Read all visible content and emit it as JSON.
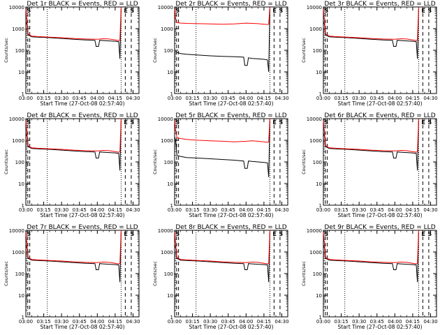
{
  "chart_data": [
    {
      "type": "line",
      "title": "Det 1r BLACK = Events, RED = LLD",
      "xlabel": "Start Time (27-Oct-08 02:57:40)",
      "ylabel": "Counts/sec",
      "yscale": "log",
      "ylim": [
        1,
        10000
      ],
      "x_tick_labels": [
        "03:00",
        "03:15",
        "03:30",
        "03:45",
        "04:00",
        "04:15",
        "04:30"
      ],
      "y_tick_labels": [
        "1",
        "10",
        "100",
        "1000",
        "10000"
      ],
      "markers": {
        "start_label": "S",
        "end_labels": [
          "E",
          "S"
        ]
      },
      "series": [
        {
          "color": "#000000",
          "x": [
            "03:00",
            "03:01",
            "03:02",
            "03:05",
            "03:10",
            "03:20",
            "03:30",
            "03:40",
            "03:50",
            "03:58",
            "03:59",
            "04:01",
            "04:02",
            "04:05",
            "04:10",
            "04:15",
            "04:18",
            "04:19",
            "04:20"
          ],
          "y": [
            2000,
            1500,
            500,
            420,
            400,
            380,
            350,
            320,
            300,
            290,
            150,
            150,
            290,
            280,
            270,
            260,
            250,
            40,
            8000
          ]
        },
        {
          "color": "#ff0000",
          "x": [
            "03:00",
            "03:01",
            "03:02",
            "03:05",
            "03:10",
            "03:20",
            "03:30",
            "03:40",
            "03:50",
            "04:00",
            "04:05",
            "04:10",
            "04:15",
            "04:18",
            "04:19",
            "04:20"
          ],
          "y": [
            8000,
            2000,
            550,
            450,
            430,
            400,
            380,
            350,
            330,
            320,
            340,
            330,
            300,
            280,
            300,
            10000
          ]
        }
      ]
    },
    {
      "type": "line",
      "title": "Det 2r BLACK = Events, RED = LLD",
      "xlabel": "Start Time (27-Oct-08 02:57:40)",
      "ylabel": "Counts/sec",
      "yscale": "log",
      "ylim": [
        1,
        10000
      ],
      "x_tick_labels": [
        "03:00",
        "03:15",
        "03:30",
        "03:45",
        "04:00",
        "04:15",
        "04:30"
      ],
      "y_tick_labels": [
        "1",
        "10",
        "100",
        "1000",
        "10000"
      ],
      "markers": {
        "start_label": "S",
        "end_labels": [
          "E",
          "S"
        ]
      },
      "series": [
        {
          "color": "#000000",
          "x": [
            "03:02",
            "03:05",
            "03:10",
            "03:20",
            "03:30",
            "03:40",
            "03:50",
            "03:58",
            "03:59",
            "04:01",
            "04:02",
            "04:05",
            "04:10",
            "04:15",
            "04:18",
            "04:19",
            "04:20"
          ],
          "y": [
            80,
            70,
            65,
            60,
            55,
            52,
            50,
            48,
            20,
            20,
            45,
            42,
            40,
            38,
            36,
            10,
            8000
          ]
        },
        {
          "color": "#ff0000",
          "x": [
            "03:00",
            "03:01",
            "03:02",
            "03:05",
            "03:10",
            "03:20",
            "03:30",
            "03:40",
            "03:50",
            "04:00",
            "04:10",
            "04:15",
            "04:18",
            "04:19",
            "04:20"
          ],
          "y": [
            8000,
            2500,
            1900,
            1800,
            1750,
            1700,
            1650,
            1600,
            1650,
            1800,
            1700,
            1600,
            1550,
            1600,
            10000
          ]
        }
      ]
    },
    {
      "type": "line",
      "title": "Det 3r BLACK = Events, RED = LLD",
      "xlabel": "Start Time (27-Oct-08 02:57:40)",
      "ylabel": "Counts/sec",
      "yscale": "log",
      "ylim": [
        1,
        10000
      ],
      "x_tick_labels": [
        "03:00",
        "03:15",
        "03:30",
        "03:45",
        "04:00",
        "04:15",
        "04:30"
      ],
      "y_tick_labels": [
        "1",
        "10",
        "100",
        "1000",
        "10000"
      ],
      "markers": {
        "start_label": "S",
        "end_labels": [
          "E",
          "S"
        ]
      },
      "series": [
        {
          "color": "#000000",
          "x": [
            "03:00",
            "03:01",
            "03:02",
            "03:05",
            "03:10",
            "03:20",
            "03:30",
            "03:40",
            "03:50",
            "03:58",
            "03:59",
            "04:01",
            "04:02",
            "04:05",
            "04:10",
            "04:15",
            "04:18",
            "04:19",
            "04:20"
          ],
          "y": [
            2000,
            1500,
            500,
            420,
            400,
            380,
            350,
            320,
            300,
            290,
            150,
            150,
            290,
            280,
            270,
            260,
            250,
            40,
            8000
          ]
        },
        {
          "color": "#ff0000",
          "x": [
            "03:00",
            "03:01",
            "03:02",
            "03:05",
            "03:10",
            "03:20",
            "03:30",
            "03:40",
            "03:50",
            "04:00",
            "04:05",
            "04:10",
            "04:15",
            "04:18",
            "04:19",
            "04:20"
          ],
          "y": [
            8000,
            2000,
            550,
            450,
            430,
            400,
            380,
            350,
            330,
            320,
            340,
            330,
            300,
            280,
            300,
            10000
          ]
        }
      ]
    },
    {
      "type": "line",
      "title": "Det 4r BLACK = Events, RED = LLD",
      "xlabel": "Start Time (27-Oct-08 02:57:40)",
      "ylabel": "Counts/sec",
      "yscale": "log",
      "ylim": [
        1,
        10000
      ],
      "x_tick_labels": [
        "03:00",
        "03:15",
        "03:30",
        "03:45",
        "04:00",
        "04:15",
        "04:30"
      ],
      "y_tick_labels": [
        "1",
        "10",
        "100",
        "1000",
        "10000"
      ],
      "markers": {
        "start_label": "S",
        "end_labels": [
          "E",
          "S"
        ]
      },
      "series": [
        {
          "color": "#000000",
          "x": [
            "03:00",
            "03:01",
            "03:02",
            "03:05",
            "03:10",
            "03:20",
            "03:30",
            "03:40",
            "03:50",
            "03:58",
            "03:59",
            "04:01",
            "04:02",
            "04:05",
            "04:10",
            "04:15",
            "04:18",
            "04:19",
            "04:20"
          ],
          "y": [
            2000,
            1500,
            500,
            420,
            400,
            380,
            350,
            320,
            300,
            290,
            150,
            150,
            290,
            280,
            270,
            260,
            250,
            40,
            8000
          ]
        },
        {
          "color": "#ff0000",
          "x": [
            "03:00",
            "03:01",
            "03:02",
            "03:05",
            "03:10",
            "03:20",
            "03:30",
            "03:40",
            "03:50",
            "04:00",
            "04:05",
            "04:10",
            "04:15",
            "04:18",
            "04:19",
            "04:20"
          ],
          "y": [
            8000,
            2000,
            550,
            450,
            430,
            400,
            380,
            350,
            330,
            320,
            340,
            330,
            300,
            280,
            300,
            10000
          ]
        }
      ]
    },
    {
      "type": "line",
      "title": "Det 5r BLACK = Events, RED = LLD",
      "xlabel": "Start Time (27-Oct-08 02:57:40)",
      "ylabel": "Counts/sec",
      "yscale": "log",
      "ylim": [
        1,
        10000
      ],
      "x_tick_labels": [
        "03:00",
        "03:15",
        "03:30",
        "03:45",
        "04:00",
        "04:15",
        "04:30"
      ],
      "y_tick_labels": [
        "1",
        "10",
        "100",
        "1000",
        "10000"
      ],
      "markers": {
        "start_label": "S",
        "end_labels": [
          "E",
          "S"
        ]
      },
      "series": [
        {
          "color": "#000000",
          "x": [
            "03:00",
            "03:01",
            "03:02",
            "03:05",
            "03:10",
            "03:20",
            "03:30",
            "03:40",
            "03:50",
            "03:58",
            "03:59",
            "04:01",
            "04:02",
            "04:05",
            "04:10",
            "04:15",
            "04:18",
            "04:19",
            "04:20"
          ],
          "y": [
            1500,
            900,
            200,
            180,
            160,
            150,
            140,
            130,
            120,
            110,
            50,
            50,
            110,
            105,
            100,
            95,
            90,
            20,
            8000
          ]
        },
        {
          "color": "#ff0000",
          "x": [
            "03:00",
            "03:01",
            "03:02",
            "03:05",
            "03:10",
            "03:20",
            "03:30",
            "03:40",
            "03:50",
            "04:00",
            "04:05",
            "04:10",
            "04:15",
            "04:18",
            "04:19",
            "04:20"
          ],
          "y": [
            8000,
            2500,
            1300,
            1200,
            1100,
            1000,
            950,
            900,
            850,
            900,
            950,
            900,
            850,
            800,
            850,
            10000
          ]
        }
      ]
    },
    {
      "type": "line",
      "title": "Det 6r BLACK = Events, RED = LLD",
      "xlabel": "Start Time (27-Oct-08 02:57:40)",
      "ylabel": "Counts/sec",
      "yscale": "log",
      "ylim": [
        1,
        10000
      ],
      "x_tick_labels": [
        "03:00",
        "03:15",
        "03:30",
        "03:45",
        "04:00",
        "04:15",
        "04:30"
      ],
      "y_tick_labels": [
        "1",
        "10",
        "100",
        "1000",
        "10000"
      ],
      "markers": {
        "start_label": "S",
        "end_labels": [
          "E",
          "S"
        ]
      },
      "series": [
        {
          "color": "#000000",
          "x": [
            "03:00",
            "03:01",
            "03:02",
            "03:05",
            "03:10",
            "03:20",
            "03:30",
            "03:40",
            "03:50",
            "03:58",
            "03:59",
            "04:01",
            "04:02",
            "04:05",
            "04:10",
            "04:15",
            "04:18",
            "04:19",
            "04:20"
          ],
          "y": [
            2000,
            1500,
            500,
            420,
            400,
            380,
            350,
            320,
            300,
            290,
            150,
            150,
            290,
            280,
            270,
            260,
            250,
            40,
            8000
          ]
        },
        {
          "color": "#ff0000",
          "x": [
            "03:00",
            "03:01",
            "03:02",
            "03:05",
            "03:10",
            "03:20",
            "03:30",
            "03:40",
            "03:50",
            "04:00",
            "04:05",
            "04:10",
            "04:15",
            "04:18",
            "04:19",
            "04:20"
          ],
          "y": [
            8000,
            2000,
            550,
            450,
            430,
            400,
            380,
            350,
            330,
            320,
            340,
            330,
            300,
            280,
            300,
            10000
          ]
        }
      ]
    },
    {
      "type": "line",
      "title": "Det 7r BLACK = Events, RED = LLD",
      "xlabel": "Start Time (27-Oct-08 02:57:40)",
      "ylabel": "Counts/sec",
      "yscale": "log",
      "ylim": [
        1,
        10000
      ],
      "x_tick_labels": [
        "03:00",
        "03:15",
        "03:30",
        "03:45",
        "04:00",
        "04:15",
        "04:30"
      ],
      "y_tick_labels": [
        "1",
        "10",
        "100",
        "1000",
        "10000"
      ],
      "markers": {
        "start_label": "S",
        "end_labels": [
          "E",
          "S"
        ]
      },
      "series": [
        {
          "color": "#000000",
          "x": [
            "03:00",
            "03:01",
            "03:02",
            "03:05",
            "03:10",
            "03:20",
            "03:30",
            "03:40",
            "03:50",
            "03:58",
            "03:59",
            "04:01",
            "04:02",
            "04:05",
            "04:10",
            "04:15",
            "04:18",
            "04:19",
            "04:20"
          ],
          "y": [
            2000,
            1500,
            500,
            420,
            400,
            380,
            350,
            320,
            300,
            290,
            150,
            150,
            290,
            280,
            270,
            260,
            250,
            40,
            8000
          ]
        },
        {
          "color": "#ff0000",
          "x": [
            "03:00",
            "03:01",
            "03:02",
            "03:05",
            "03:10",
            "03:20",
            "03:30",
            "03:40",
            "03:50",
            "04:00",
            "04:05",
            "04:10",
            "04:15",
            "04:18",
            "04:19",
            "04:20"
          ],
          "y": [
            8000,
            2000,
            550,
            450,
            430,
            400,
            380,
            350,
            330,
            320,
            340,
            330,
            300,
            280,
            300,
            10000
          ]
        }
      ]
    },
    {
      "type": "line",
      "title": "Det 8r BLACK = Events, RED = LLD",
      "xlabel": "Start Time (27-Oct-08 02:57:40)",
      "ylabel": "Counts/sec",
      "yscale": "log",
      "ylim": [
        1,
        10000
      ],
      "x_tick_labels": [
        "03:00",
        "03:15",
        "03:30",
        "03:45",
        "04:00",
        "04:15",
        "04:30"
      ],
      "y_tick_labels": [
        "1",
        "10",
        "100",
        "1000",
        "10000"
      ],
      "markers": {
        "start_label": "S",
        "end_labels": [
          "E",
          "S"
        ]
      },
      "series": [
        {
          "color": "#000000",
          "x": [
            "03:00",
            "03:01",
            "03:02",
            "03:05",
            "03:10",
            "03:20",
            "03:30",
            "03:40",
            "03:50",
            "03:58",
            "03:59",
            "04:01",
            "04:02",
            "04:05",
            "04:10",
            "04:15",
            "04:18",
            "04:19",
            "04:20"
          ],
          "y": [
            2000,
            1500,
            500,
            420,
            400,
            380,
            350,
            320,
            300,
            290,
            150,
            150,
            290,
            280,
            270,
            260,
            250,
            40,
            8000
          ]
        },
        {
          "color": "#ff0000",
          "x": [
            "03:00",
            "03:01",
            "03:02",
            "03:05",
            "03:10",
            "03:20",
            "03:30",
            "03:40",
            "03:50",
            "04:00",
            "04:05",
            "04:10",
            "04:15",
            "04:18",
            "04:19",
            "04:20"
          ],
          "y": [
            8000,
            2000,
            550,
            450,
            430,
            400,
            380,
            350,
            330,
            320,
            340,
            330,
            300,
            280,
            300,
            10000
          ]
        }
      ]
    },
    {
      "type": "line",
      "title": "Det 9r BLACK = Events, RED = LLD",
      "xlabel": "Start Time (27-Oct-08 02:57:40)",
      "ylabel": "Counts/sec",
      "yscale": "log",
      "ylim": [
        1,
        10000
      ],
      "x_tick_labels": [
        "03:00",
        "03:15",
        "03:30",
        "03:45",
        "04:00",
        "04:15",
        "04:30"
      ],
      "y_tick_labels": [
        "1",
        "10",
        "100",
        "1000",
        "10000"
      ],
      "markers": {
        "start_label": "S",
        "end_labels": [
          "E",
          "S"
        ]
      },
      "series": [
        {
          "color": "#000000",
          "x": [
            "03:00",
            "03:01",
            "03:02",
            "03:05",
            "03:10",
            "03:20",
            "03:30",
            "03:40",
            "03:50",
            "03:58",
            "03:59",
            "04:01",
            "04:02",
            "04:05",
            "04:10",
            "04:15",
            "04:18",
            "04:19",
            "04:20"
          ],
          "y": [
            2000,
            1500,
            500,
            420,
            400,
            380,
            350,
            320,
            300,
            290,
            150,
            150,
            290,
            280,
            270,
            260,
            250,
            40,
            8000
          ]
        },
        {
          "color": "#ff0000",
          "x": [
            "03:00",
            "03:01",
            "03:02",
            "03:05",
            "03:10",
            "03:20",
            "03:30",
            "03:40",
            "03:50",
            "04:00",
            "04:05",
            "04:10",
            "04:15",
            "04:18",
            "04:19",
            "04:20"
          ],
          "y": [
            8000,
            2000,
            550,
            450,
            430,
            400,
            380,
            350,
            330,
            320,
            340,
            330,
            300,
            280,
            300,
            10000
          ]
        }
      ]
    }
  ]
}
